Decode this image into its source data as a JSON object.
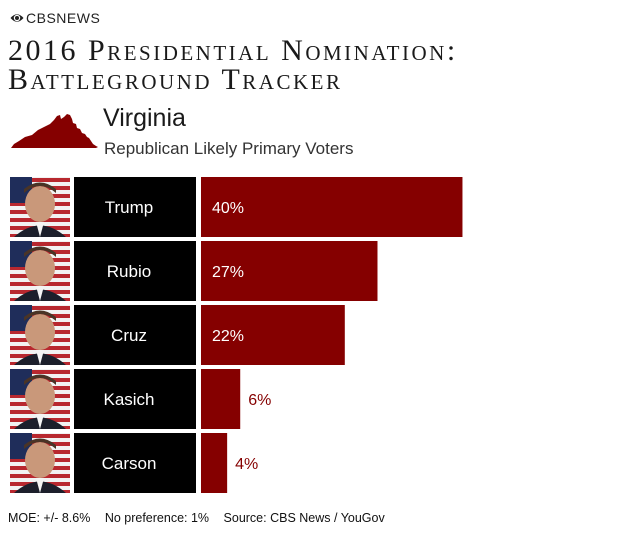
{
  "brand": {
    "name": "CBSNEWS",
    "logo_icon": "cbs-eye-icon"
  },
  "title": {
    "line1": "2016 Presidential Nomination:",
    "line2": "Battleground Tracker"
  },
  "state": {
    "name": "Virginia",
    "subtitle": "Republican Likely Primary Voters",
    "icon": "virginia-map-icon"
  },
  "colors": {
    "bar": "#850000",
    "name_box": "#000000",
    "value_outside": "#850000",
    "value_inside": "#ffffff"
  },
  "chart_data": {
    "type": "bar",
    "orientation": "horizontal",
    "title": "2016 Presidential Nomination: Battleground Tracker",
    "subtitle": "Virginia — Republican Likely Primary Voters",
    "categories": [
      "Trump",
      "Rubio",
      "Cruz",
      "Kasich",
      "Carson"
    ],
    "values": [
      40,
      27,
      22,
      6,
      4
    ],
    "value_labels": [
      "40%",
      "27%",
      "22%",
      "6%",
      "4%"
    ],
    "unit": "%",
    "xlim": [
      0,
      41
    ],
    "grid": false,
    "legend": "none"
  },
  "footer": {
    "moe": "MOE: +/- 8.6%",
    "no_preference": "No preference: 1%",
    "source": "Source: CBS News / YouGov"
  }
}
